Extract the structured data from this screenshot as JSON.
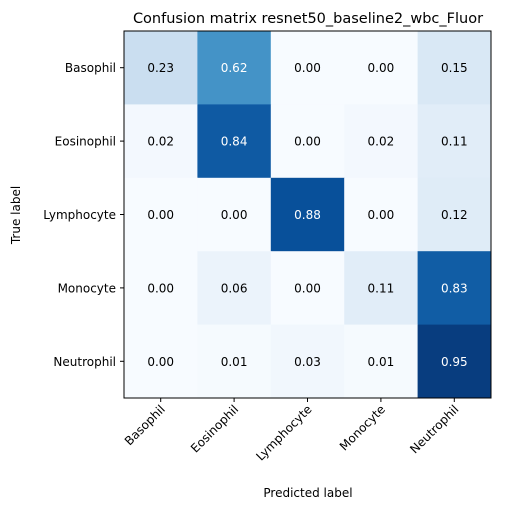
{
  "chart_data": {
    "type": "heatmap",
    "title": "Confusion matrix resnet50_baseline2_wbc_Fluor",
    "xlabel": "Predicted label",
    "ylabel": "True label",
    "x_categories": [
      "Basophil",
      "Eosinophil",
      "Lymphocyte",
      "Monocyte",
      "Neutrophil"
    ],
    "y_categories": [
      "Basophil",
      "Eosinophil",
      "Lymphocyte",
      "Monocyte",
      "Neutrophil"
    ],
    "values": [
      [
        0.23,
        0.62,
        0.0,
        0.0,
        0.15
      ],
      [
        0.02,
        0.84,
        0.0,
        0.02,
        0.11
      ],
      [
        0.0,
        0.0,
        0.88,
        0.0,
        0.12
      ],
      [
        0.0,
        0.06,
        0.0,
        0.11,
        0.83
      ],
      [
        0.0,
        0.01,
        0.03,
        0.01,
        0.95
      ]
    ],
    "colormap": "Blues",
    "value_range": [
      0,
      1
    ],
    "text_color_threshold": 0.5
  }
}
